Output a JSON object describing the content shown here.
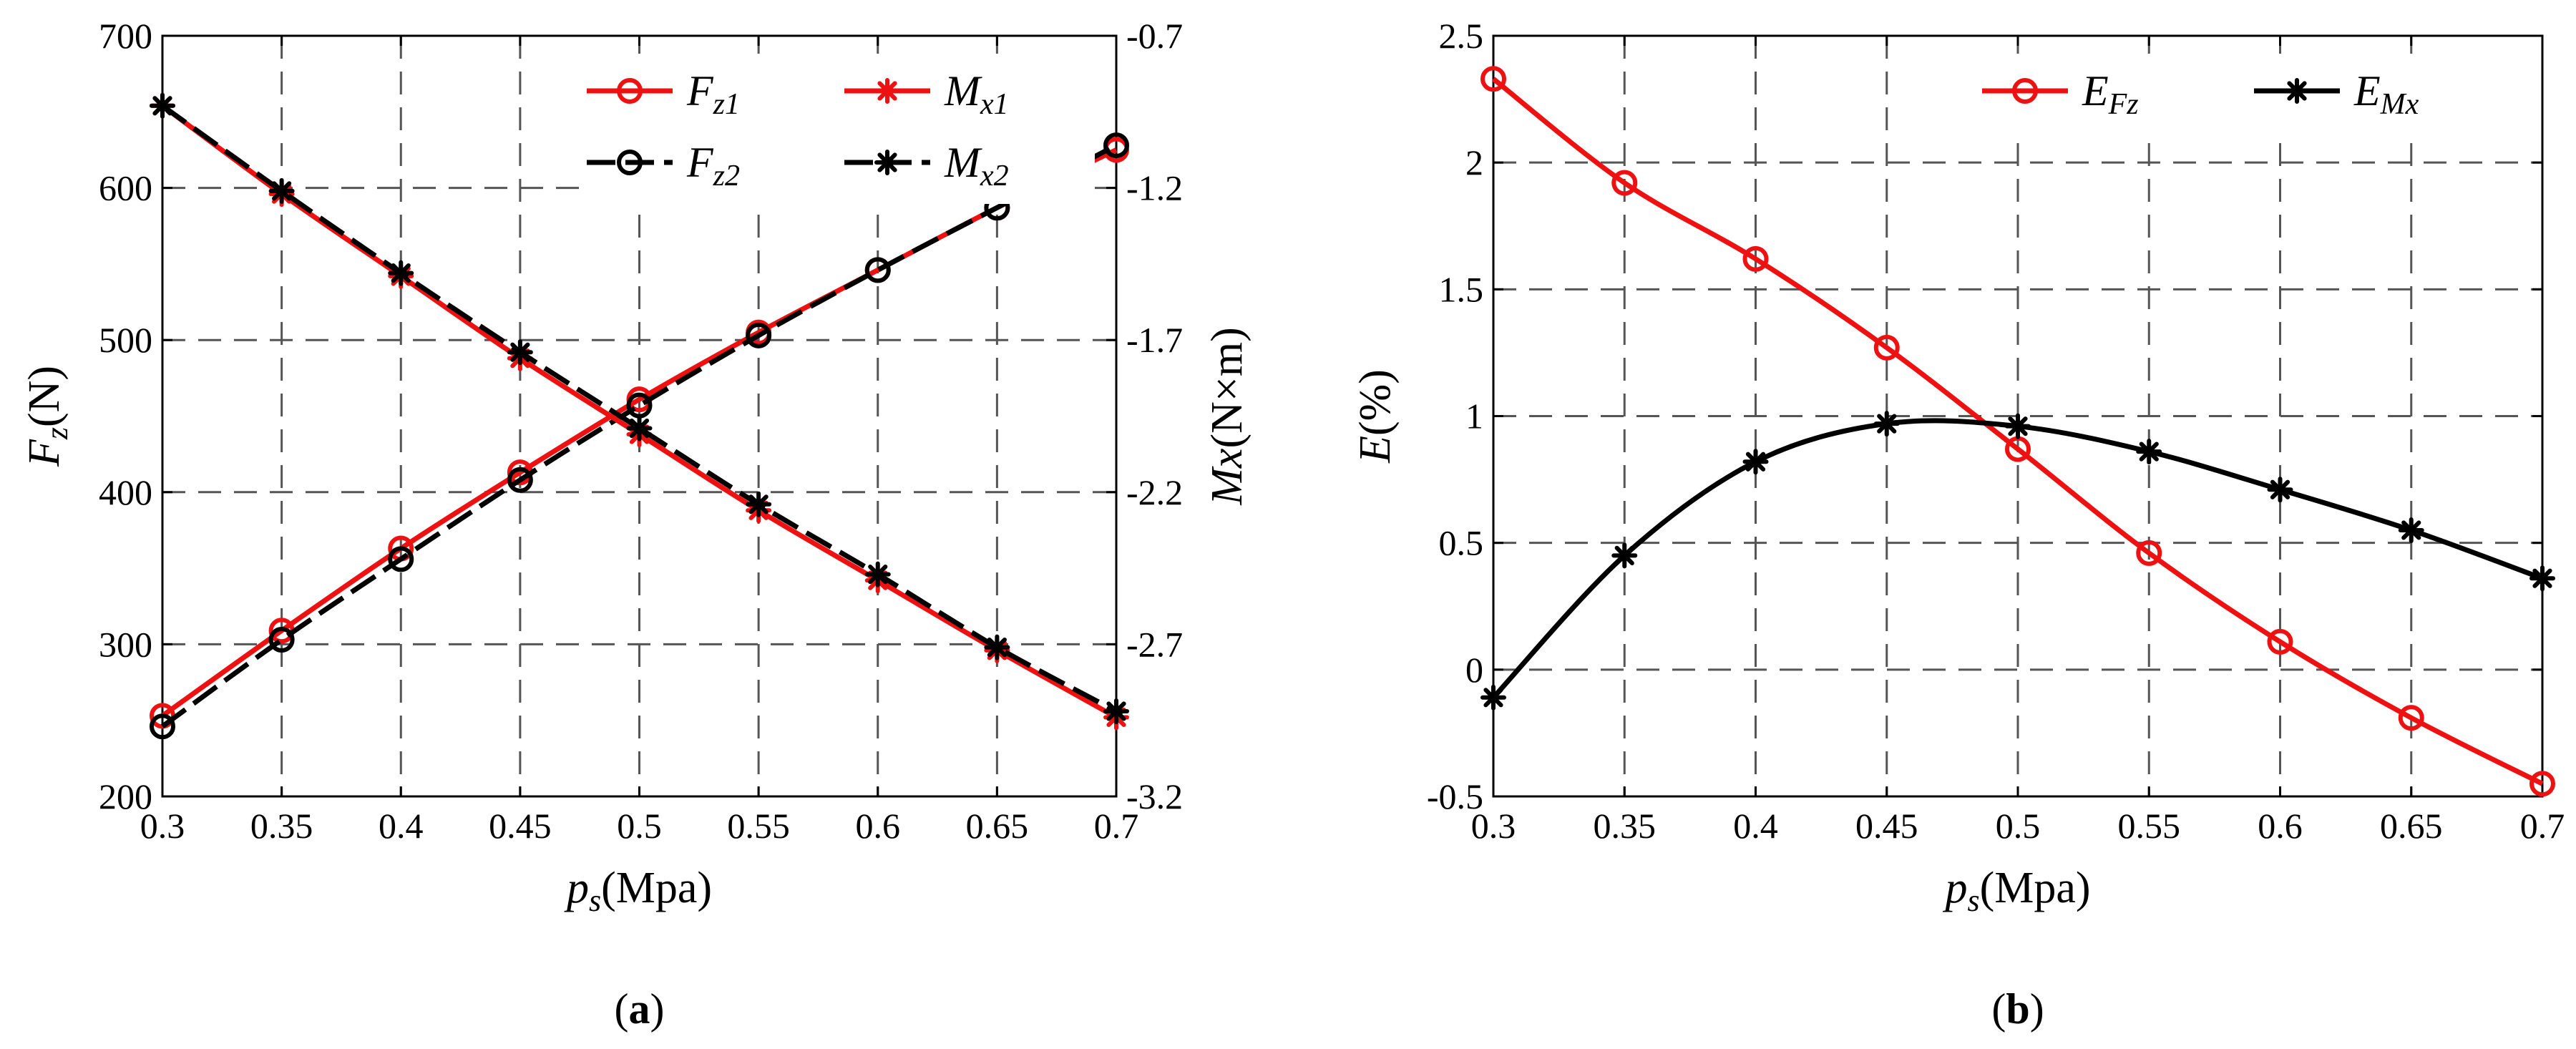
{
  "colors": {
    "red": "#ee1111",
    "black": "#000000",
    "grid": "#555555"
  },
  "chart_data": [
    {
      "type": "line",
      "panel": "a",
      "panel_label": "(a)",
      "xlabel": "p_s(Mpa)",
      "xlabel_var": "p",
      "xlabel_sub": "s",
      "xlabel_unit": "(Mpa)",
      "ylabel": "F_z(N)",
      "ylabel_var": "F",
      "ylabel_sub": "z",
      "ylabel_unit": "(N)",
      "y2label": "Mx(N×m)",
      "y2label_var": "Mx",
      "y2label_unit": "(N×m)",
      "xlim": [
        0.3,
        0.7
      ],
      "ylim": [
        200,
        700
      ],
      "y2lim": [
        -3.2,
        -0.7
      ],
      "x_ticks": [
        "0.3",
        "0.35",
        "0.4",
        "0.45",
        "0.5",
        "0.55",
        "0.6",
        "0.65",
        "0.7"
      ],
      "y_ticks": [
        "200",
        "300",
        "400",
        "500",
        "600",
        "700"
      ],
      "y2_ticks": [
        "-3.2",
        "-2.7",
        "-2.2",
        "-1.7",
        "-1.2",
        "-0.7"
      ],
      "grid": true,
      "legend_position": "top-right",
      "x": [
        0.3,
        0.35,
        0.4,
        0.45,
        0.5,
        0.55,
        0.6,
        0.65,
        0.7
      ],
      "series": [
        {
          "name": "F_z1",
          "label_var": "F",
          "label_sub": "z1",
          "axis": "left",
          "color": "red",
          "dash": false,
          "marker": "circle",
          "values": [
            253,
            309,
            363,
            413,
            461,
            505,
            546,
            587,
            625
          ]
        },
        {
          "name": "F_z2",
          "label_var": "F",
          "label_sub": "z2",
          "axis": "left",
          "color": "black",
          "dash": true,
          "marker": "circle",
          "values": [
            246,
            303,
            356,
            408,
            457,
            503,
            546,
            587,
            628
          ]
        },
        {
          "name": "M_x1",
          "label_var": "M",
          "label_sub": "x1",
          "axis": "right",
          "color": "red",
          "dash": false,
          "marker": "star",
          "values": [
            -0.93,
            -1.22,
            -1.49,
            -1.76,
            -2.01,
            -2.26,
            -2.49,
            -2.72,
            -2.94
          ]
        },
        {
          "name": "M_x2",
          "label_var": "M",
          "label_sub": "x2",
          "axis": "right",
          "color": "black",
          "dash": true,
          "marker": "star",
          "values": [
            -0.93,
            -1.21,
            -1.48,
            -1.74,
            -1.99,
            -2.24,
            -2.47,
            -2.71,
            -2.92
          ]
        }
      ]
    },
    {
      "type": "line",
      "panel": "b",
      "panel_label": "(b)",
      "xlabel": "p_s(Mpa)",
      "xlabel_var": "p",
      "xlabel_sub": "s",
      "xlabel_unit": "(Mpa)",
      "ylabel": "E(%)",
      "ylabel_var": "E",
      "ylabel_unit": "(%)",
      "xlim": [
        0.3,
        0.7
      ],
      "ylim": [
        -0.5,
        2.5
      ],
      "x_ticks": [
        "0.3",
        "0.35",
        "0.4",
        "0.45",
        "0.5",
        "0.55",
        "0.6",
        "0.65",
        "0.7"
      ],
      "y_ticks": [
        "-0.5",
        "0",
        "0.5",
        "1",
        "1.5",
        "2",
        "2.5"
      ],
      "grid": true,
      "legend_position": "top-right",
      "x": [
        0.3,
        0.35,
        0.4,
        0.45,
        0.5,
        0.55,
        0.6,
        0.65,
        0.7
      ],
      "series": [
        {
          "name": "E_Fz",
          "label_var": "E",
          "label_sub": "Fz",
          "color": "red",
          "marker": "circle",
          "values": [
            2.33,
            1.92,
            1.62,
            1.27,
            0.87,
            0.46,
            0.11,
            -0.19,
            -0.45
          ]
        },
        {
          "name": "E_Mx",
          "label_var": "E",
          "label_sub": "Mx",
          "color": "black",
          "marker": "star",
          "values": [
            -0.11,
            0.45,
            0.82,
            0.97,
            0.96,
            0.86,
            0.71,
            0.55,
            0.36
          ]
        }
      ]
    }
  ]
}
